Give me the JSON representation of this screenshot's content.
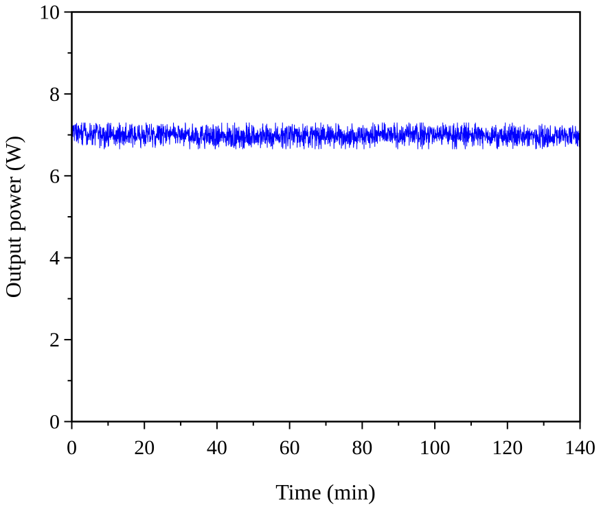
{
  "chart_data": {
    "type": "line",
    "title": "",
    "xlabel": "Time (min)",
    "ylabel": "Output power (W)",
    "xlim": [
      0,
      140
    ],
    "ylim": [
      0,
      10
    ],
    "x_ticks": [
      0,
      20,
      40,
      60,
      80,
      100,
      120,
      140
    ],
    "y_ticks": [
      0,
      2,
      4,
      6,
      8,
      10
    ],
    "x_minor_step": 10,
    "y_minor_step": 1,
    "grid": false,
    "legend": null,
    "series": [
      {
        "name": "Output power",
        "color": "#0000ff",
        "description": "Noisy stable trace around 7.0 W",
        "mean": 7.0,
        "min_approx": 6.65,
        "max_approx": 7.3,
        "x": [
          0,
          10,
          20,
          30,
          40,
          50,
          60,
          70,
          80,
          90,
          100,
          110,
          120,
          130,
          140
        ],
        "values": [
          7.05,
          7.0,
          6.98,
          7.0,
          6.95,
          6.97,
          7.0,
          6.98,
          6.98,
          7.0,
          7.02,
          7.0,
          6.97,
          6.98,
          6.98
        ]
      }
    ]
  },
  "axes": {
    "xlabel": "Time (min)",
    "ylabel": "Output power (W)"
  }
}
